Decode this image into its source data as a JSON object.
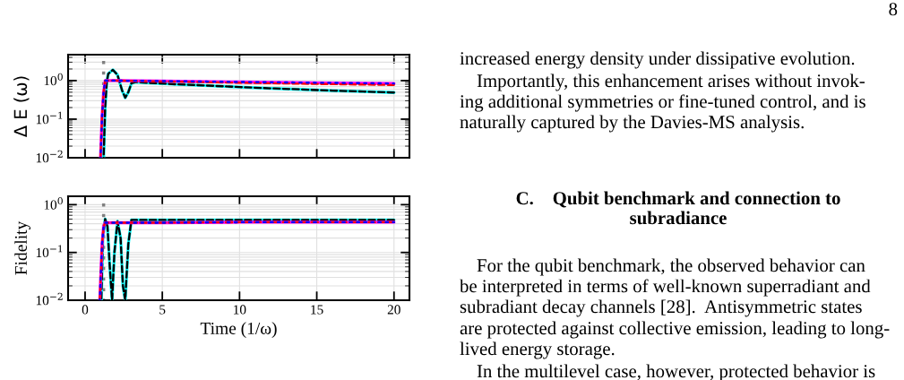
{
  "chart_data": [
    {
      "type": "line",
      "ylabel": "Δ E (ω)",
      "log": "y",
      "grid": true,
      "tick_labels": "y",
      "xlim": [
        -1.1,
        21
      ],
      "xticks": [
        0,
        5,
        10,
        15,
        20
      ],
      "ylim": [
        0.01,
        4.7
      ],
      "yticks": [
        {
          "value": 0.01,
          "label": "10$^{−2}$"
        },
        {
          "value": 0.1,
          "label": "10$^{−1}$"
        },
        {
          "value": 1,
          "label": "10$^{0}$"
        }
      ],
      "ref_lines": [
        {
          "axis": "x",
          "value": 1.2,
          "color": "#808080",
          "line_style": "dotted"
        }
      ],
      "series": [
        {
          "color": "#00ffff",
          "line_style": "solid",
          "x": [
            1.2,
            1.3,
            1.4,
            1.5,
            1.8,
            2.1,
            2.4,
            2.6,
            2.8,
            3.0,
            3.3,
            4,
            6,
            8,
            10,
            12,
            14,
            16,
            18,
            20
          ],
          "values": [
            0.01,
            0.2,
            0.9,
            1.5,
            1.9,
            1.4,
            0.55,
            0.36,
            0.5,
            0.85,
            0.92,
            0.88,
            0.8,
            0.74,
            0.68,
            0.63,
            0.59,
            0.55,
            0.52,
            0.49
          ]
        },
        {
          "color": "#000000",
          "line_style": "dashed",
          "x": [
            1.2,
            1.3,
            1.4,
            1.5,
            1.8,
            2.1,
            2.4,
            2.6,
            2.8,
            3.0,
            3.3,
            4,
            6,
            8,
            10,
            12,
            14,
            16,
            18,
            20
          ],
          "values": [
            0.01,
            0.2,
            0.9,
            1.5,
            1.9,
            1.4,
            0.55,
            0.36,
            0.5,
            0.85,
            0.92,
            0.88,
            0.8,
            0.74,
            0.68,
            0.63,
            0.59,
            0.55,
            0.52,
            0.49
          ]
        },
        {
          "color": "#ff00ff",
          "line_style": "solid",
          "x": [
            1.0,
            1.1,
            1.2,
            1.3,
            2,
            5,
            10,
            15,
            20
          ],
          "values": [
            0.01,
            0.12,
            0.5,
            1.0,
            1.0,
            0.97,
            0.92,
            0.88,
            0.84
          ]
        },
        {
          "color": "#ff0000",
          "line_style": "dashed",
          "x": [
            1.0,
            1.1,
            1.2,
            1.3,
            2,
            5,
            10,
            15,
            20
          ],
          "values": [
            0.01,
            0.12,
            0.5,
            1.0,
            1.0,
            0.95,
            0.88,
            0.82,
            0.77
          ]
        },
        {
          "color": "#0000ff",
          "line_style": "dotted",
          "x": [
            1.0,
            1.1,
            1.2,
            1.3,
            2,
            5,
            10,
            15,
            20
          ],
          "values": [
            0.01,
            0.12,
            0.5,
            1.0,
            1.0,
            0.97,
            0.92,
            0.88,
            0.84
          ]
        }
      ],
      "annotations": [
        "8",
        "increased energy density under dissipative evolution.",
        "Importantly, this enhancement arises without invok-",
        "ing additional symmetries or fine-tuned control, and is",
        "naturally captured by the Davies-MS analysis.",
        "C.    Qubit benchmark and connection to",
        "subradiance",
        "For the qubit benchmark, the observed behavior can",
        "be interpreted in terms of well-known superradiant and",
        "subradiant decay channels [28].  Antisymmetric states",
        "are protected against collective emission, leading to long-",
        "lived energy storage.",
        "In the multilevel case, however, protected behavior is"
      ]
    },
    {
      "type": "line",
      "ylabel": "Fidelity",
      "xlabel": "Time (1/ω)",
      "log": "y",
      "grid": true,
      "xlim": [
        -1.1,
        21
      ],
      "xticks": [
        0,
        5,
        10,
        15,
        20
      ],
      "ylim": [
        0.01,
        1.5
      ],
      "yticks": [
        {
          "value": 0.01,
          "label": "10$^{−2}$"
        },
        {
          "value": 0.1,
          "label": "10$^{−1}$"
        },
        {
          "value": 1,
          "label": "10$^{0}$"
        }
      ],
      "ref_lines": [
        {
          "axis": "x",
          "value": 1.2,
          "color": "#808080",
          "line_style": "dotted"
        }
      ],
      "series": [
        {
          "color": "#00ffff",
          "line_style": "solid",
          "x": [
            1.05,
            1.15,
            1.3,
            1.45,
            1.6,
            1.75,
            1.9,
            2.1,
            2.3,
            2.45,
            2.6,
            2.8,
            3.0,
            5,
            10,
            15,
            20
          ],
          "values": [
            0.01,
            0.2,
            0.5,
            0.35,
            0.05,
            0.01,
            0.1,
            0.45,
            0.2,
            0.02,
            0.01,
            0.15,
            0.48,
            0.48,
            0.48,
            0.48,
            0.48
          ]
        },
        {
          "color": "#000000",
          "line_style": "dashed",
          "x": [
            1.05,
            1.15,
            1.3,
            1.45,
            1.6,
            1.75,
            1.9,
            2.1,
            2.3,
            2.45,
            2.6,
            2.8,
            3.0,
            5,
            10,
            15,
            20
          ],
          "values": [
            0.01,
            0.2,
            0.5,
            0.35,
            0.05,
            0.01,
            0.1,
            0.45,
            0.2,
            0.02,
            0.01,
            0.15,
            0.48,
            0.48,
            0.48,
            0.48,
            0.48
          ]
        },
        {
          "color": "#ff00ff",
          "line_style": "solid",
          "x": [
            0.95,
            1.1,
            1.2,
            1.3,
            2,
            5,
            10,
            15,
            20
          ],
          "values": [
            0.01,
            0.15,
            0.35,
            0.42,
            0.42,
            0.42,
            0.43,
            0.43,
            0.43
          ]
        },
        {
          "color": "#ff0000",
          "line_style": "dashed",
          "x": [
            0.95,
            1.1,
            1.2,
            1.3,
            2,
            5,
            10,
            15,
            20
          ],
          "values": [
            0.01,
            0.15,
            0.35,
            0.42,
            0.42,
            0.42,
            0.43,
            0.43,
            0.43
          ]
        },
        {
          "color": "#0000ff",
          "line_style": "dotted",
          "x": [
            0.95,
            1.1,
            1.2,
            1.3,
            2,
            5,
            10,
            15,
            20
          ],
          "values": [
            0.01,
            0.15,
            0.35,
            0.42,
            0.42,
            0.42,
            0.43,
            0.43,
            0.43
          ]
        }
      ]
    }
  ]
}
